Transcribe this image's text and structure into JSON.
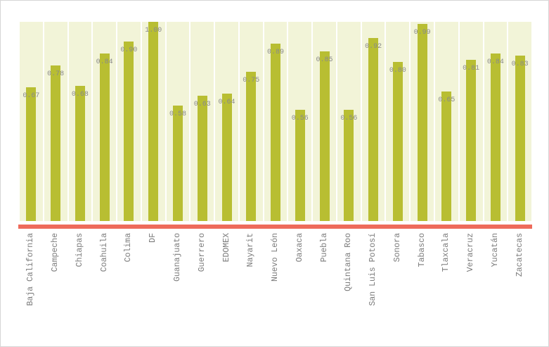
{
  "chart_data": {
    "type": "bar",
    "title": "",
    "xlabel": "",
    "ylabel": "",
    "ylim": [
      0,
      1.0
    ],
    "grid": false,
    "legend": null,
    "categories": [
      "Baja California",
      "Campeche",
      "Chiapas",
      "Coahuila",
      "Colima",
      "DF",
      "Guanajuato",
      "Guerrero",
      "EDOMEX",
      "Nayarit",
      "Nuevo León",
      "Oaxaca",
      "Puebla",
      "Quintana Roo",
      "San Luis Potosí",
      "Sonora",
      "Tabasco",
      "Tlaxcala",
      "Veracruz",
      "Yucatán",
      "Zacatecas"
    ],
    "values": [
      0.67,
      0.78,
      0.68,
      0.84,
      0.9,
      1.0,
      0.58,
      0.63,
      0.64,
      0.75,
      0.89,
      0.56,
      0.85,
      0.56,
      0.92,
      0.8,
      0.99,
      0.65,
      0.81,
      0.84,
      0.83
    ],
    "value_labels": [
      "0.67",
      "0.78",
      "0.68",
      "0.84",
      "0.90",
      "1.00",
      "0.58",
      "0.63",
      "0.64",
      "0.75",
      "0.89",
      "0.56",
      "0.85",
      "0.56",
      "0.92",
      "0.80",
      "0.99",
      "0.65",
      "0.81",
      "0.84",
      "0.83"
    ],
    "colors": {
      "bar": "#b8be32",
      "column_background": "#f2f4d8",
      "axis_line": "#ee6b5b",
      "value_label": "#8a8a8a",
      "category_label": "#7a7a7a"
    }
  }
}
